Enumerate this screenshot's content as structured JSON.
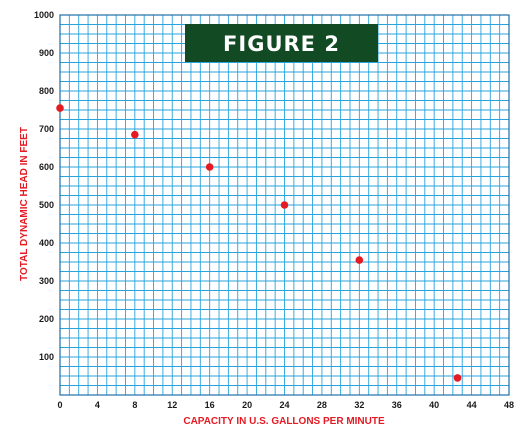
{
  "chart_data": {
    "type": "scatter",
    "title": "FIGURE 2",
    "xlabel": "CAPACITY IN U.S. GALLONS PER MINUTE",
    "ylabel": "TOTAL DYNAMIC HEAD IN FEET",
    "xlim": [
      0,
      48
    ],
    "ylim": [
      0,
      1000
    ],
    "x_ticks": [
      "0",
      "4",
      "8",
      "12",
      "16",
      "20",
      "24",
      "28",
      "32",
      "36",
      "40",
      "44",
      "48"
    ],
    "y_ticks": [
      "100",
      "200",
      "300",
      "400",
      "500",
      "600",
      "700",
      "800",
      "900",
      "1000"
    ],
    "grid": true,
    "points": [
      {
        "x": 0,
        "y": 755
      },
      {
        "x": 8,
        "y": 685
      },
      {
        "x": 16,
        "y": 600
      },
      {
        "x": 24,
        "y": 500
      },
      {
        "x": 32,
        "y": 355
      },
      {
        "x": 42.5,
        "y": 45
      }
    ]
  },
  "colors": {
    "grid": "#29a3dc",
    "points": "#e51b24",
    "axis_titles": "#e51b24",
    "banner_bg": "#124a24",
    "banner_text": "#ffffff"
  }
}
